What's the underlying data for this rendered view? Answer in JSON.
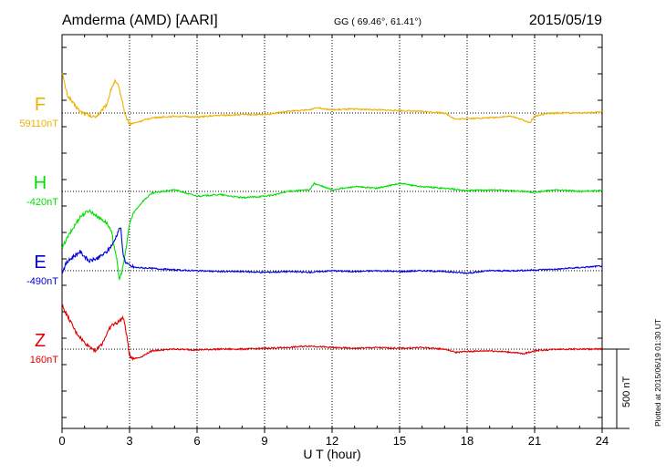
{
  "header": {
    "station": "Amderma (AMD)  [AARI]",
    "coords": "GG ( 69.46°,  61.41°)",
    "date": "2015/05/19"
  },
  "side_note": "Plotted at 2015/06/19 01:30 UT",
  "scale_label": "500 nT",
  "chart_data": {
    "type": "line",
    "xlabel": "U T (hour)",
    "xlim": [
      0,
      24
    ],
    "xticks": [
      0,
      3,
      6,
      9,
      12,
      15,
      18,
      21,
      24
    ],
    "grid_x": "dotted at 3-hour intervals",
    "scale_bar_nT": 500,
    "series": [
      {
        "name": "F",
        "baseline_label": "59110nT",
        "baseline_nT": 59110,
        "color": "#f0b000",
        "x": [
          0,
          0.1,
          0.25,
          0.5,
          0.8,
          1.1,
          1.35,
          1.5,
          1.7,
          2.0,
          2.2,
          2.35,
          2.5,
          2.6,
          2.7,
          2.8,
          3.0,
          3.3,
          4,
          5,
          6,
          7,
          8,
          9,
          10,
          11,
          11.3,
          12,
          13,
          14,
          15,
          16,
          17,
          17.5,
          18,
          19,
          20,
          20.8,
          21,
          21.5,
          22,
          23,
          24
        ],
        "y": [
          260,
          190,
          110,
          60,
          10,
          -10,
          -25,
          -20,
          0,
          60,
          160,
          200,
          170,
          120,
          60,
          -10,
          -70,
          -60,
          -30,
          -20,
          -25,
          -15,
          -10,
          -10,
          10,
          20,
          35,
          20,
          25,
          20,
          15,
          10,
          0,
          -40,
          -35,
          -30,
          -20,
          -60,
          -20,
          -5,
          0,
          0,
          5
        ]
      },
      {
        "name": "H",
        "baseline_label": "-420nT",
        "baseline_nT": -420,
        "color": "#00e000",
        "x": [
          0,
          0.2,
          0.5,
          0.8,
          1.2,
          1.5,
          2.0,
          2.2,
          2.4,
          2.55,
          2.7,
          2.85,
          3.0,
          3.2,
          3.6,
          4,
          5,
          6,
          7,
          8,
          9,
          9.5,
          10,
          11,
          11.2,
          12,
          13,
          14,
          15,
          16,
          17,
          18,
          19,
          20,
          21,
          22,
          23,
          24
        ],
        "y": [
          -360,
          -300,
          -230,
          -160,
          -120,
          -150,
          -200,
          -260,
          -400,
          -560,
          -480,
          -360,
          -200,
          -130,
          -60,
          -10,
          10,
          -30,
          -20,
          -40,
          -30,
          -20,
          0,
          10,
          50,
          10,
          30,
          20,
          50,
          30,
          20,
          5,
          10,
          5,
          -5,
          10,
          0,
          5
        ]
      },
      {
        "name": "E",
        "baseline_label": "-490nT",
        "baseline_nT": -490,
        "color": "#0000e0",
        "x": [
          0,
          0.2,
          0.5,
          0.8,
          1.2,
          1.6,
          2.0,
          2.3,
          2.5,
          2.6,
          2.7,
          2.8,
          3.0,
          3.3,
          4,
          5,
          6,
          7,
          8,
          9,
          10,
          11,
          12,
          13,
          14,
          15,
          16,
          17,
          18,
          19,
          20,
          21,
          22,
          23,
          24
        ],
        "y": [
          -10,
          50,
          90,
          120,
          60,
          80,
          120,
          180,
          250,
          280,
          120,
          60,
          30,
          20,
          15,
          5,
          0,
          -5,
          -5,
          -10,
          -5,
          -10,
          0,
          -5,
          0,
          -5,
          0,
          -5,
          -15,
          0,
          0,
          5,
          10,
          20,
          30
        ]
      },
      {
        "name": "Z",
        "baseline_label": "160nT",
        "baseline_nT": 160,
        "color": "#e00000",
        "x": [
          0,
          0.15,
          0.35,
          0.6,
          1.0,
          1.3,
          1.5,
          1.8,
          2.0,
          2.2,
          2.5,
          2.7,
          2.8,
          2.9,
          3.0,
          3.2,
          3.5,
          4,
          5,
          6,
          7,
          8,
          9,
          10,
          11,
          12,
          13,
          14,
          15,
          16,
          17,
          17.5,
          18,
          19,
          20,
          20.5,
          21,
          22,
          23,
          24
        ],
        "y": [
          280,
          230,
          180,
          110,
          40,
          10,
          -10,
          40,
          100,
          150,
          170,
          200,
          150,
          60,
          -40,
          -60,
          -50,
          -10,
          0,
          -5,
          0,
          0,
          5,
          10,
          20,
          10,
          5,
          10,
          5,
          10,
          0,
          -20,
          -15,
          -10,
          -20,
          -30,
          -10,
          0,
          0,
          0
        ]
      }
    ]
  }
}
